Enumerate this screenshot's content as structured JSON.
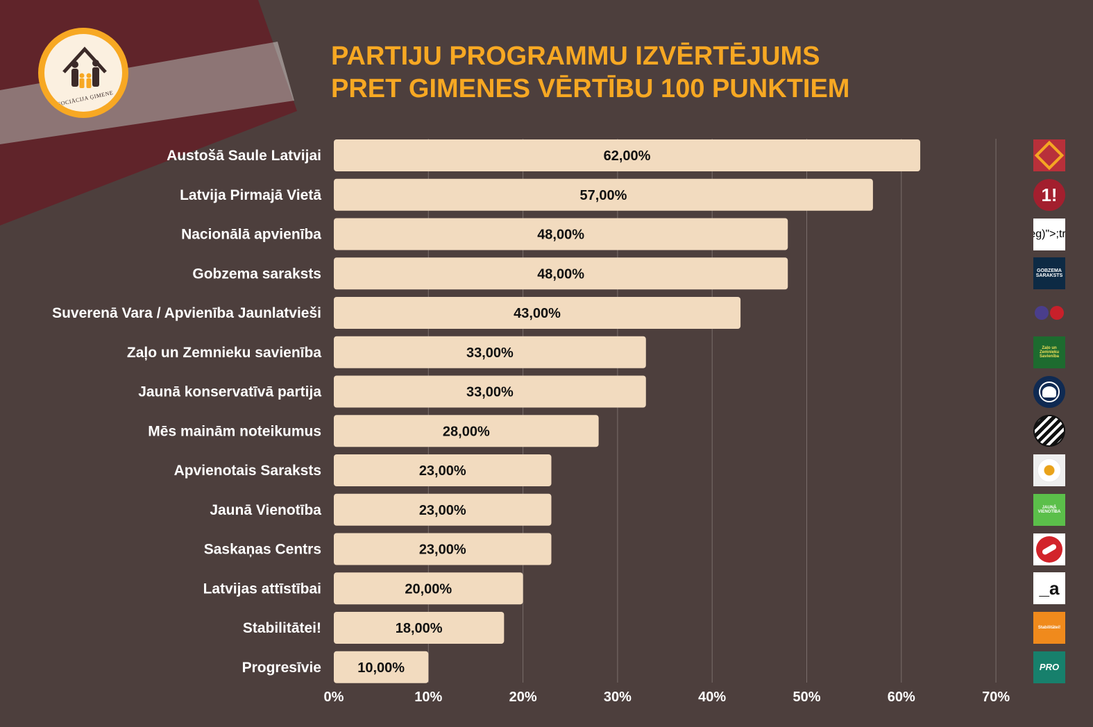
{
  "title": {
    "line1": "PARTIJU PROGRAMMU IZVĒRTĒJUMS",
    "line2": "PRET GIMENES VĒRTĪBU 100 PUNKTIEM"
  },
  "logo": {
    "caption": "ASOCIĀCIJA ĢIMENE"
  },
  "colors": {
    "background": "#4d3f3d",
    "bar": "#f2dbbf",
    "accent": "#f7a823",
    "grid": "#7a6e6b"
  },
  "chart_data": {
    "type": "bar",
    "orientation": "horizontal",
    "categories": [
      "Austošā Saule Latvijai",
      "Latvija Pirmajā Vietā",
      "Nacionālā apvienība",
      "Gobzema saraksts",
      "Suverenā Vara / Apvienība Jaunlatvieši",
      "Zaļo un Zemnieku savienība",
      "Jaunā konservatīvā partija",
      "Mēs mainām noteikumus",
      "Apvienotais Saraksts",
      "Jaunā Vienotība",
      "Saskaņas Centrs",
      "Latvijas attīstībai",
      "Stabilitātei!",
      "Progresīvie"
    ],
    "values": [
      62,
      57,
      48,
      48,
      43,
      33,
      33,
      28,
      23,
      23,
      23,
      20,
      18,
      10
    ],
    "value_labels": [
      "62,00%",
      "57,00%",
      "48,00%",
      "48,00%",
      "43,00%",
      "33,00%",
      "33,00%",
      "28,00%",
      "23,00%",
      "23,00%",
      "23,00%",
      "20,00%",
      "18,00%",
      "10,00%"
    ],
    "x_ticks": [
      "0%",
      "10%",
      "20%",
      "30%",
      "40%",
      "50%",
      "60%",
      "70%"
    ],
    "xlim": [
      0,
      70
    ],
    "grid": true,
    "legend": "none"
  },
  "party_icons": [
    {
      "name": "austosa-saule-logo-icon"
    },
    {
      "name": "latvija-pirmaja-vieta-logo-icon",
      "text": "1!"
    },
    {
      "name": "nacionala-apvieniba-logo-icon"
    },
    {
      "name": "gobzema-saraksts-logo-icon",
      "text": "GOBZEMA SARAKSTS"
    },
    {
      "name": "suverena-vara-logo-icon"
    },
    {
      "name": "zzs-logo-icon",
      "text": "Zaļo un Zemnieku Savienība"
    },
    {
      "name": "jkp-tree-logo-icon"
    },
    {
      "name": "mes-mainam-noteikumus-logo-icon"
    },
    {
      "name": "apvienotais-saraksts-daisy-icon"
    },
    {
      "name": "jauna-vienotiba-logo-icon",
      "text": "JAUNĀ VIENOTĪBA"
    },
    {
      "name": "saskanas-centrs-logo-icon"
    },
    {
      "name": "latvijas-attistibai-logo-icon",
      "text": "_a"
    },
    {
      "name": "stabilitatei-logo-icon",
      "text": "Stabilitātei!"
    },
    {
      "name": "progresivie-logo-icon",
      "text": "PRO"
    }
  ]
}
